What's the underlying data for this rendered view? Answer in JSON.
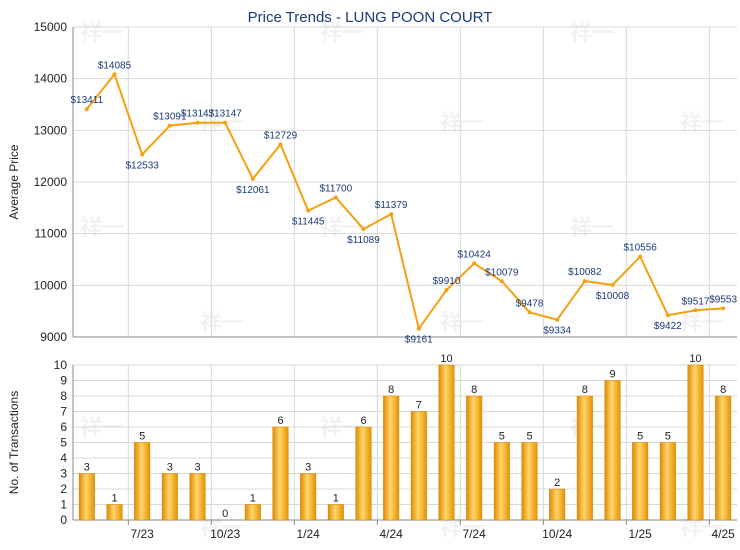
{
  "chart_data": [
    {
      "type": "line",
      "title": "Price Trends - LUNG POON COURT",
      "ylabel": "Average Price",
      "ylim": [
        9000,
        15000
      ],
      "yticks": [
        9000,
        10000,
        11000,
        12000,
        13000,
        14000,
        15000
      ],
      "color": "#f5a011",
      "values": [
        13411,
        14085,
        12533,
        13091,
        13147,
        13147,
        12061,
        12729,
        11445,
        11700,
        11089,
        11379,
        9161,
        9910,
        10424,
        10079,
        9478,
        9334,
        10082,
        10008,
        10556,
        9422,
        9517,
        9553
      ],
      "labels": [
        "$13411",
        "$14085",
        "$12533",
        "$13091",
        "$13147",
        "$13147",
        "$12061",
        "$12729",
        "$11445",
        "$11700",
        "$11089",
        "$11379",
        "$9161",
        "$9910",
        "$10424",
        "$10079",
        "$9478",
        "$9334",
        "$10082",
        "$10008",
        "$10556",
        "$9422",
        "$9517",
        "$9553"
      ]
    },
    {
      "type": "bar",
      "ylabel": "No. of Transactions",
      "ylim": [
        0,
        10
      ],
      "yticks": [
        0,
        1,
        2,
        3,
        4,
        5,
        6,
        7,
        8,
        9,
        10
      ],
      "xtick_labels": [
        "7/23",
        "10/23",
        "1/24",
        "4/24",
        "7/24",
        "10/24",
        "1/25",
        "4/25"
      ],
      "color": "#f5a011",
      "values": [
        3,
        1,
        5,
        3,
        3,
        0,
        1,
        6,
        3,
        1,
        6,
        8,
        7,
        10,
        8,
        5,
        5,
        2,
        8,
        9,
        5,
        5,
        10,
        8
      ]
    }
  ],
  "watermark": "祥一"
}
